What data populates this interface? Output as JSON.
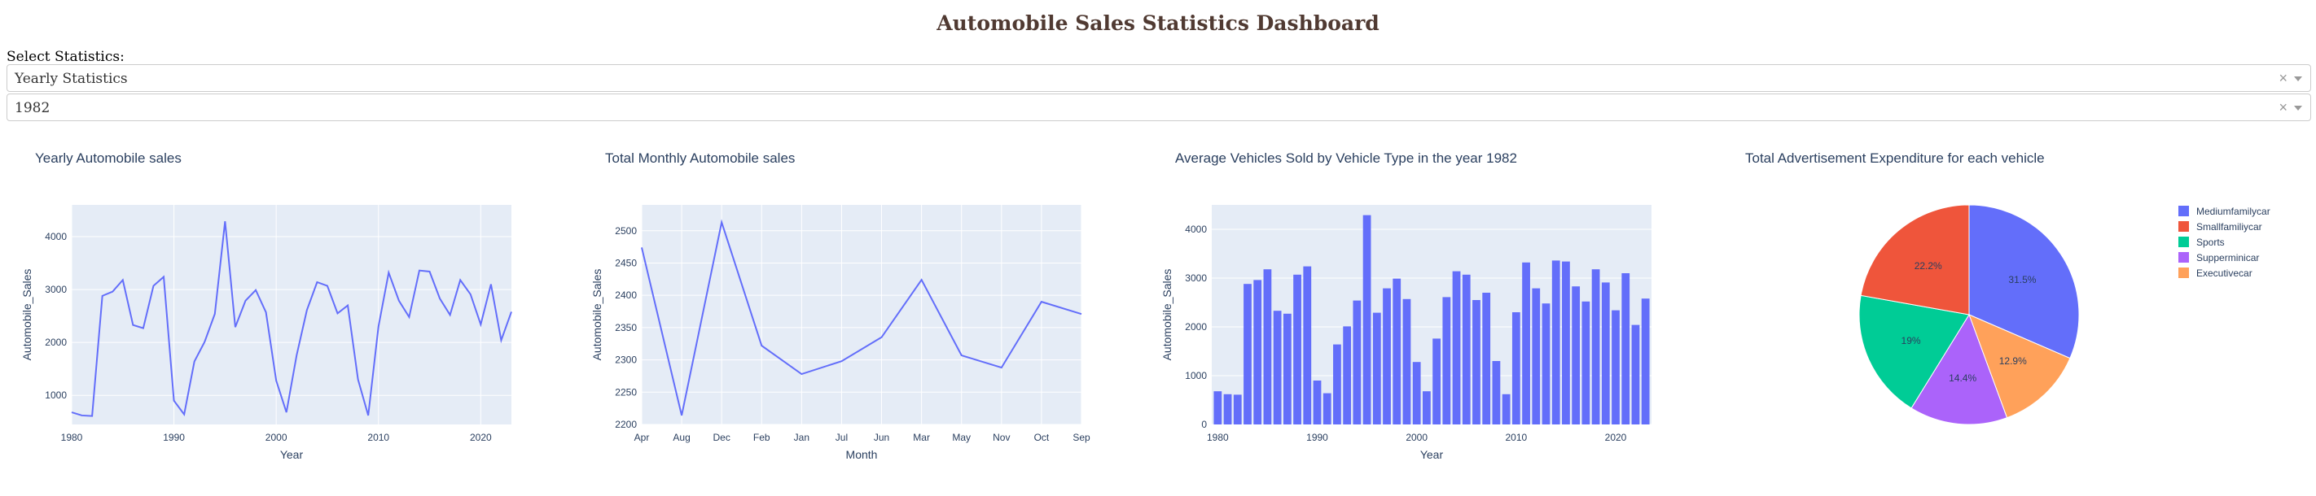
{
  "page": {
    "title": "Automobile Sales Statistics Dashboard",
    "select_label": "Select Statistics:",
    "dropdown_statistics": {
      "value": "Yearly Statistics"
    },
    "dropdown_year": {
      "value": "1982"
    },
    "clear_glyph": "×"
  },
  "colors": {
    "blue": "#636EFA",
    "red": "#EF553B",
    "green": "#00CC96",
    "purple": "#AB63FA",
    "orange": "#FFA15A",
    "plot_bg": "#E5ECF6",
    "title": "#503A32"
  },
  "chart_data": [
    {
      "type": "line",
      "title": "Yearly Automobile sales",
      "xlabel": "Year",
      "ylabel": "Automobile_Sales",
      "xlim": [
        1980,
        2023
      ],
      "ylim": [
        450,
        4600
      ],
      "xticks": [
        1980,
        1990,
        2000,
        2010,
        2020
      ],
      "yticks": [
        1000,
        2000,
        3000,
        4000
      ],
      "x": [
        1980,
        1981,
        1982,
        1983,
        1984,
        1985,
        1986,
        1987,
        1988,
        1989,
        1990,
        1991,
        1992,
        1993,
        1994,
        1995,
        1996,
        1997,
        1998,
        1999,
        2000,
        2001,
        2002,
        2003,
        2004,
        2005,
        2006,
        2007,
        2008,
        2009,
        2010,
        2011,
        2012,
        2013,
        2014,
        2015,
        2016,
        2017,
        2018,
        2019,
        2020,
        2021,
        2022,
        2023
      ],
      "y": [
        680,
        620,
        610,
        2880,
        2960,
        3180,
        2330,
        2270,
        3070,
        3240,
        900,
        640,
        1640,
        2010,
        2540,
        4290,
        2290,
        2790,
        2990,
        2570,
        1280,
        680,
        1760,
        2610,
        3140,
        3070,
        2550,
        2700,
        1300,
        620,
        2300,
        3320,
        2790,
        2480,
        3360,
        3340,
        2830,
        2520,
        3180,
        2910,
        2340,
        3100,
        2040,
        2580
      ]
    },
    {
      "type": "line",
      "title": "Total Monthly Automobile sales",
      "xlabel": "Month",
      "ylabel": "Automobile_Sales",
      "ylim": [
        2200,
        2540
      ],
      "yticks": [
        2200,
        2250,
        2300,
        2350,
        2400,
        2450,
        2500
      ],
      "categories": [
        "Apr",
        "Aug",
        "Dec",
        "Feb",
        "Jan",
        "Jul",
        "Jun",
        "Mar",
        "May",
        "Nov",
        "Oct",
        "Sep"
      ],
      "values": [
        2474,
        2214,
        2513,
        2322,
        2278,
        2298,
        2335,
        2424,
        2307,
        2288,
        2390,
        2371
      ]
    },
    {
      "type": "bar",
      "title": "Average Vehicles Sold by Vehicle Type in the year 1982",
      "xlabel": "Year",
      "ylabel": "Automobile_Sales",
      "xlim": [
        1979.4,
        2023.6
      ],
      "ylim": [
        0,
        4500
      ],
      "xticks": [
        1980,
        1990,
        2000,
        2010,
        2020
      ],
      "yticks": [
        0,
        1000,
        2000,
        3000,
        4000
      ],
      "x": [
        1980,
        1981,
        1982,
        1983,
        1984,
        1985,
        1986,
        1987,
        1988,
        1989,
        1990,
        1991,
        1992,
        1993,
        1994,
        1995,
        1996,
        1997,
        1998,
        1999,
        2000,
        2001,
        2002,
        2003,
        2004,
        2005,
        2006,
        2007,
        2008,
        2009,
        2010,
        2011,
        2012,
        2013,
        2014,
        2015,
        2016,
        2017,
        2018,
        2019,
        2020,
        2021,
        2022,
        2023
      ],
      "values": [
        680,
        620,
        610,
        2880,
        2960,
        3180,
        2330,
        2270,
        3070,
        3240,
        900,
        640,
        1640,
        2010,
        2540,
        4290,
        2290,
        2790,
        2990,
        2570,
        1280,
        680,
        1760,
        2610,
        3140,
        3070,
        2550,
        2700,
        1300,
        620,
        2300,
        3320,
        2790,
        2480,
        3360,
        3340,
        2830,
        2520,
        3180,
        2910,
        2340,
        3100,
        2040,
        2580
      ]
    },
    {
      "type": "pie",
      "title": "Total Advertisement Expenditure for each vehicle",
      "slices": [
        {
          "label": "Mediumfamilycar",
          "value": 31.5,
          "text": "31.5%",
          "color": "#636EFA"
        },
        {
          "label": "Executivecar",
          "value": 12.9,
          "text": "12.9%",
          "color": "#FFA15A"
        },
        {
          "label": "Supperminicar",
          "value": 14.4,
          "text": "14.4%",
          "color": "#AB63FA"
        },
        {
          "label": "Sports",
          "value": 19.0,
          "text": "19%",
          "color": "#00CC96"
        },
        {
          "label": "Smallfamiliycar",
          "value": 22.2,
          "text": "22.2%",
          "color": "#EF553B"
        }
      ],
      "legend": [
        "Mediumfamilycar",
        "Smallfamiliycar",
        "Sports",
        "Supperminicar",
        "Executivecar"
      ],
      "legend_position": "top-right"
    }
  ]
}
